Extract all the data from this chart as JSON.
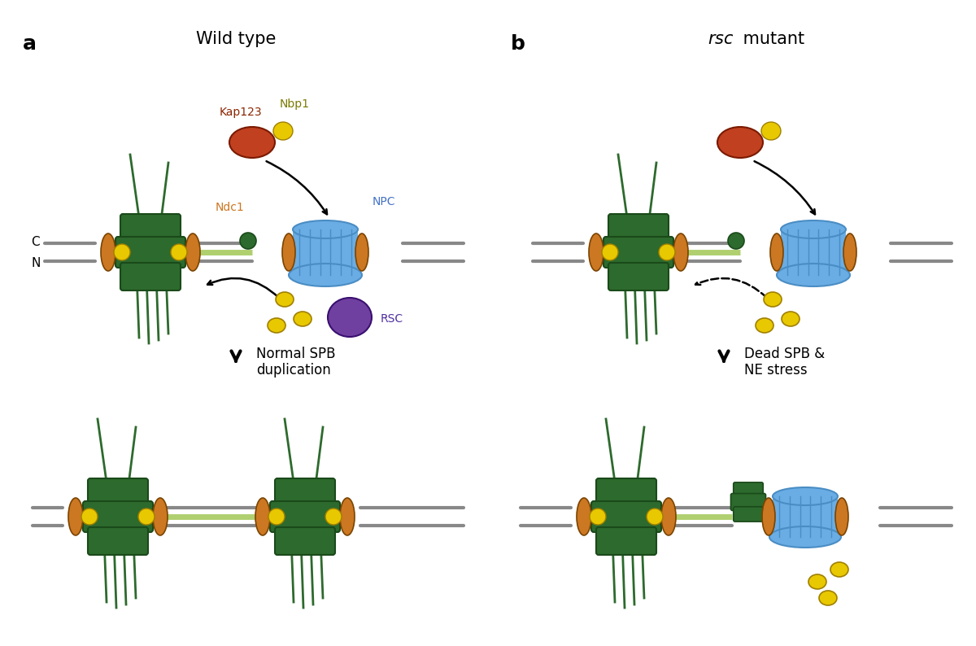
{
  "bg_color": "#ffffff",
  "dark_green": "#2d6a2d",
  "orange": "#cc7722",
  "yellow": "#e8c800",
  "blue_npc": "#6aade4",
  "blue_npc_dark": "#4a8dc4",
  "purple_rsc": "#7040a0",
  "red_kap": "#c04020",
  "gray_membrane": "#888888",
  "green_linker": "#b0d070",
  "kap_color": "#8b2500",
  "nbp_color": "#7a7a00",
  "ndc_color": "#cc7722",
  "npc_label_color": "#4472c4",
  "rsc_label_color": "#5030a0",
  "title_a": "Wild type",
  "label_kap": "Kap123",
  "label_nbp": "Nbp1",
  "label_ndc": "Ndc1",
  "label_npc": "NPC",
  "label_rsc": "RSC",
  "label_normal": "Normal SPB\nduplication",
  "label_dead": "Dead SPB &\nNE stress",
  "label_C": "C",
  "label_N": "N"
}
